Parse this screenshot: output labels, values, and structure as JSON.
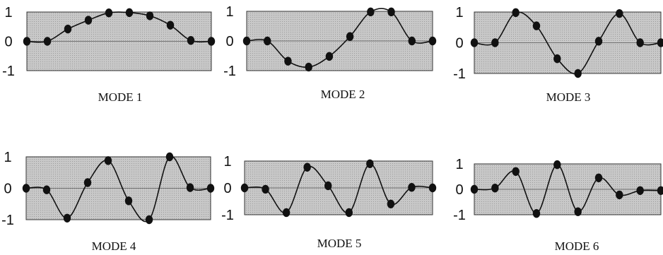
{
  "figure": {
    "colors": {
      "plot_background": "#c8c8c8",
      "line": "#111111",
      "marker": "#111111",
      "zero_line": "#555555"
    }
  },
  "chart_data": [
    {
      "type": "line",
      "title": "MODE 1",
      "ylim": [
        -1,
        1
      ],
      "yticks": [
        "1",
        "0",
        "-1"
      ],
      "grid": false,
      "series": [
        {
          "x": [
            0,
            1,
            2,
            3,
            4,
            5,
            6,
            7,
            8,
            9
          ],
          "y": [
            0,
            0,
            0.42,
            0.72,
            0.97,
            0.98,
            0.87,
            0.55,
            0.03,
            0
          ]
        }
      ]
    },
    {
      "type": "line",
      "title": "MODE 2",
      "ylim": [
        -1,
        1
      ],
      "yticks": [
        "1",
        "0",
        "-1"
      ],
      "grid": false,
      "series": [
        {
          "x": [
            0,
            1,
            2,
            3,
            4,
            5,
            6,
            7,
            8,
            9
          ],
          "y": [
            0,
            0,
            -0.68,
            -0.88,
            -0.52,
            0.15,
            0.98,
            0.98,
            0,
            0
          ]
        }
      ]
    },
    {
      "type": "line",
      "title": "MODE 3",
      "ylim": [
        -1,
        1
      ],
      "yticks": [
        "1",
        "0",
        "-1"
      ],
      "grid": false,
      "series": [
        {
          "x": [
            0,
            1,
            2,
            3,
            4,
            5,
            6,
            7,
            8,
            9
          ],
          "y": [
            0,
            0,
            0.98,
            0.55,
            -0.52,
            -1,
            0.05,
            0.95,
            0,
            0
          ]
        }
      ]
    },
    {
      "type": "line",
      "title": "MODE 4",
      "ylim": [
        -1,
        1
      ],
      "yticks": [
        "1",
        "0",
        "-1"
      ],
      "grid": false,
      "series": [
        {
          "x": [
            0,
            1,
            2,
            3,
            4,
            5,
            6,
            7,
            8,
            9
          ],
          "y": [
            0,
            -0.05,
            -0.95,
            0.18,
            0.88,
            -0.4,
            -1,
            1,
            0.02,
            0
          ]
        }
      ]
    },
    {
      "type": "line",
      "title": "MODE 5",
      "ylim": [
        -1,
        1
      ],
      "yticks": [
        "1",
        "0",
        "-1"
      ],
      "grid": false,
      "series": [
        {
          "x": [
            0,
            1,
            2,
            3,
            4,
            5,
            6,
            7,
            8,
            9
          ],
          "y": [
            0,
            -0.05,
            -0.92,
            0.77,
            0.08,
            -0.92,
            0.9,
            -0.6,
            0.02,
            0
          ]
        }
      ]
    },
    {
      "type": "line",
      "title": "MODE 6",
      "ylim": [
        -1,
        1
      ],
      "yticks": [
        "1",
        "0",
        "-1"
      ],
      "grid": false,
      "series": [
        {
          "x": [
            0,
            1,
            2,
            3,
            4,
            5,
            6,
            7,
            8,
            9
          ],
          "y": [
            0,
            0.05,
            0.7,
            -0.95,
            0.97,
            -0.88,
            0.45,
            -0.22,
            -0.05,
            -0.05
          ]
        }
      ]
    }
  ]
}
